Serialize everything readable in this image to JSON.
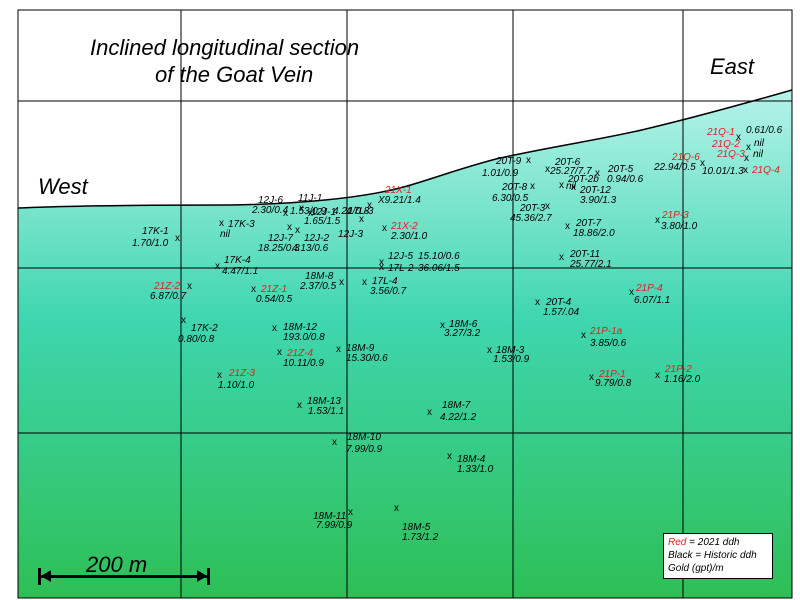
{
  "title_line1": "Inclined longitudinal section",
  "title_line2": "of the Goat Vein",
  "west_label": "West",
  "east_label": "East",
  "scale_label": "200 m",
  "legend": {
    "red_word": "Red",
    "red_rest": " = 2021 ddh",
    "black": "Black = Historic ddh",
    "gold": "Gold (gpt)/m"
  },
  "colors": {
    "gradient_top": "#b5f3ea",
    "gradient_mid": "#3fd6b0",
    "gradient_bottom": "#2dbf55",
    "historic": "#000000",
    "recent_2021": "#e02020"
  },
  "holes": [
    {
      "id": "17K-1",
      "grade": "1.70/1.0",
      "red": false
    },
    {
      "id": "17K-3",
      "grade": "nil",
      "red": false
    },
    {
      "id": "17K-4",
      "grade": "4.47/1.1",
      "red": false
    },
    {
      "id": "12J-6",
      "grade": "2.30/0.4",
      "red": false
    },
    {
      "id": "11J-1",
      "grade": "1.53/0.9",
      "red": false
    },
    {
      "id": "12J-1",
      "grade": "1.65/1.5",
      "red": false
    },
    {
      "id": "17L-3",
      "grade": "4.21/0.8",
      "red": false
    },
    {
      "id": "12J-7",
      "grade": "18.25/0.3",
      "red": false
    },
    {
      "id": "12J-2",
      "grade": "4.13/0.6",
      "red": false
    },
    {
      "id": "12J-3",
      "grade": "",
      "red": false
    },
    {
      "id": "21X-1",
      "grade": "X9.21/1.4",
      "red": true
    },
    {
      "id": "21X-2",
      "grade": "2.30/1.0",
      "red": true
    },
    {
      "id": "12J-5",
      "grade": "15.10/0.6",
      "red": false
    },
    {
      "id": "17L-2",
      "grade": "36.06/1.5",
      "red": false
    },
    {
      "id": "18M-8",
      "grade": "2.37/0.5",
      "red": false
    },
    {
      "id": "17L-4",
      "grade": "3.56/0.7",
      "red": false
    },
    {
      "id": "21Z-2",
      "grade": "6.87/0.7",
      "red": true
    },
    {
      "id": "21Z-1",
      "grade": "0.54/0.5",
      "red": true
    },
    {
      "id": "17K-2",
      "grade": "0.80/0.8",
      "red": false
    },
    {
      "id": "18M-12",
      "grade": "193.0/0.8",
      "red": false
    },
    {
      "id": "21Z-4",
      "grade": "10.11/0.9",
      "red": true
    },
    {
      "id": "18M-9",
      "grade": "15.30/0.6",
      "red": false
    },
    {
      "id": "21Z-3",
      "grade": "1.10/1.0",
      "red": true
    },
    {
      "id": "18M-13",
      "grade": "1.53/1.1",
      "red": false
    },
    {
      "id": "18M-10",
      "grade": "7.99/0.9",
      "red": false
    },
    {
      "id": "18M-11",
      "grade": "7.99/0.9",
      "red": false
    },
    {
      "id": "18M-5",
      "grade": "1.73/1.2",
      "red": false
    },
    {
      "id": "18M-6",
      "grade": "3.27/3.2",
      "red": false
    },
    {
      "id": "18M-3",
      "grade": "1.53/0.9",
      "red": false
    },
    {
      "id": "18M-7",
      "grade": "4.22/1.2",
      "red": false
    },
    {
      "id": "18M-4",
      "grade": "1.33/1.0",
      "red": false
    },
    {
      "id": "20T-9",
      "grade": "1.01/0.9",
      "red": false
    },
    {
      "id": "20T-6",
      "grade": "25.27/7.7",
      "red": false
    },
    {
      "id": "20T-2b",
      "grade": "nil",
      "red": false
    },
    {
      "id": "20T-8",
      "grade": "6.30/0.5",
      "red": false
    },
    {
      "id": "20T-5",
      "grade": "0.94/0.6",
      "red": false
    },
    {
      "id": "20T-12",
      "grade": "3.90/1.3",
      "red": false
    },
    {
      "id": "20T-3",
      "grade": "45.36/2.7",
      "red": false
    },
    {
      "id": "20T-7",
      "grade": "18.86/2.0",
      "red": false
    },
    {
      "id": "20T-11",
      "grade": "25.77/2.1",
      "red": false
    },
    {
      "id": "20T-4",
      "grade": "1.57/.04",
      "red": false
    },
    {
      "id": "21Q-1",
      "grade": "0.61/0.6",
      "red": true
    },
    {
      "id": "21Q-2",
      "grade": "nil",
      "red": true
    },
    {
      "id": "21Q-3",
      "grade": "nil",
      "red": true
    },
    {
      "id": "21Q-6",
      "grade": "22.94/0.5",
      "red": true
    },
    {
      "id": "21Q-4",
      "grade": "10.01/1.3",
      "red": true
    },
    {
      "id": "21P-3",
      "grade": "3.80/1.0",
      "red": true
    },
    {
      "id": "21P-4",
      "grade": "6.07/1.1",
      "red": true
    },
    {
      "id": "21P-1a",
      "grade": "3.85/0.6",
      "red": true
    },
    {
      "id": "21P-1",
      "grade": "9.79/0.8",
      "red": true
    },
    {
      "id": "21P-2",
      "grade": "1.16/2.0",
      "red": true
    }
  ]
}
